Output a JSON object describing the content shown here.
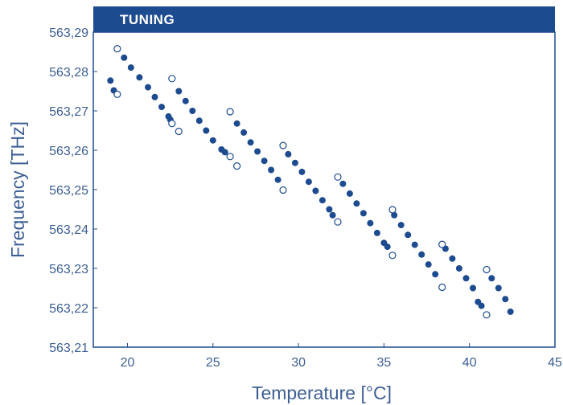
{
  "chart_data": {
    "type": "scatter",
    "title": "TUNING",
    "xlabel": "Temperature [°C]",
    "ylabel": "Frequency [THz]",
    "xlim": [
      18,
      45
    ],
    "ylim": [
      563.21,
      563.29
    ],
    "x_ticks": [
      20,
      25,
      30,
      35,
      40,
      45
    ],
    "y_ticks": [
      563.21,
      563.22,
      563.23,
      563.24,
      563.25,
      563.26,
      563.27,
      563.28,
      563.29
    ],
    "x_tick_labels": [
      "20",
      "25",
      "30",
      "35",
      "40",
      "45"
    ],
    "y_tick_labels": [
      "563,21",
      "563,22",
      "563,23",
      "563,24",
      "563,25",
      "563,26",
      "563,27",
      "563,28",
      "563,29"
    ],
    "grid": false,
    "colors": {
      "header": "#1d4b8f",
      "frame": "#1d4b8f",
      "point": "#1d4b8f",
      "text": "#3d5f94"
    },
    "series": [
      {
        "marker": "filled",
        "points": [
          [
            19.0,
            563.2777
          ],
          [
            19.2,
            563.2752
          ],
          [
            19.8,
            563.2835
          ],
          [
            20.2,
            563.281
          ],
          [
            20.7,
            563.2785
          ],
          [
            21.2,
            563.276
          ],
          [
            21.6,
            563.2735
          ],
          [
            22.0,
            563.271
          ],
          [
            22.4,
            563.2686
          ],
          [
            22.5,
            563.2678
          ],
          [
            23.0,
            563.275
          ],
          [
            23.4,
            563.2725
          ],
          [
            23.8,
            563.27
          ],
          [
            24.2,
            563.2675
          ],
          [
            24.6,
            563.265
          ],
          [
            25.0,
            563.2625
          ],
          [
            25.5,
            563.2602
          ],
          [
            25.7,
            563.2595
          ],
          [
            26.4,
            563.2668
          ],
          [
            26.8,
            563.2645
          ],
          [
            27.2,
            563.262
          ],
          [
            27.6,
            563.2597
          ],
          [
            28.0,
            563.2573
          ],
          [
            28.4,
            563.255
          ],
          [
            28.8,
            563.2525
          ],
          [
            29.4,
            563.259
          ],
          [
            29.8,
            563.2568
          ],
          [
            30.2,
            563.2545
          ],
          [
            30.6,
            563.252
          ],
          [
            31.0,
            563.2497
          ],
          [
            31.4,
            563.2473
          ],
          [
            31.8,
            563.245
          ],
          [
            32.0,
            563.2435
          ],
          [
            32.6,
            563.2515
          ],
          [
            33.0,
            563.249
          ],
          [
            33.4,
            563.2465
          ],
          [
            33.8,
            563.244
          ],
          [
            34.2,
            563.2415
          ],
          [
            34.6,
            563.239
          ],
          [
            35.0,
            563.2365
          ],
          [
            35.2,
            563.2355
          ],
          [
            35.6,
            563.2435
          ],
          [
            36.0,
            563.241
          ],
          [
            36.4,
            563.2385
          ],
          [
            36.8,
            563.236
          ],
          [
            37.2,
            563.2335
          ],
          [
            37.6,
            563.231
          ],
          [
            38.0,
            563.2285
          ],
          [
            38.6,
            563.235
          ],
          [
            39.0,
            563.2325
          ],
          [
            39.4,
            563.23
          ],
          [
            39.8,
            563.2275
          ],
          [
            40.2,
            563.225
          ],
          [
            40.5,
            563.2215
          ],
          [
            40.7,
            563.2205
          ],
          [
            41.3,
            563.2275
          ],
          [
            41.7,
            563.225
          ],
          [
            42.1,
            563.2222
          ],
          [
            42.4,
            563.219
          ]
        ]
      },
      {
        "marker": "open",
        "points": [
          [
            19.4,
            563.2858
          ],
          [
            19.4,
            563.2742
          ],
          [
            22.6,
            563.2782
          ],
          [
            22.6,
            563.2668
          ],
          [
            23.0,
            563.2648
          ],
          [
            26.0,
            563.2698
          ],
          [
            26.0,
            563.2584
          ],
          [
            26.4,
            563.256
          ],
          [
            29.1,
            563.2612
          ],
          [
            29.1,
            563.2499
          ],
          [
            32.3,
            563.2532
          ],
          [
            32.3,
            563.2418
          ],
          [
            35.5,
            563.2449
          ],
          [
            35.5,
            563.2333
          ],
          [
            38.4,
            563.2361
          ],
          [
            38.4,
            563.2252
          ],
          [
            41.0,
            563.2297
          ],
          [
            41.0,
            563.2182
          ]
        ]
      }
    ]
  }
}
